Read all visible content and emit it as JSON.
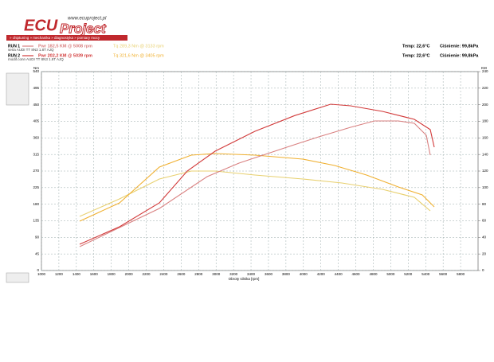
{
  "header": {
    "logo": "ECU",
    "logo2": "Project",
    "url": "www.ecuproject.pl",
    "nav": "» chiptuning » mechanika » diagnostyka » pomiary mocy"
  },
  "chart_data": {
    "type": "line",
    "runs": [
      {
        "label": "RUN 1",
        "power": "Pwr 182,5 KM @ 5008 rpm",
        "torque": "Tq 289,3 Nm @ 3133 rpm",
        "desc": "seria AUDI TT 8N3 1.8T AJQ",
        "temp": "Temp: 22,6°C",
        "pressure": "Ciśnienie: 99,8kPa"
      },
      {
        "label": "RUN 2",
        "power": "Pwr 202,2 KM @ 5039 rpm",
        "torque": "Tq 321,6 Nm @ 3405 rpm",
        "desc": "modif.conn AUDI TT 8N3 1.8T AJQ",
        "temp": "Temp: 22,6°C",
        "pressure": "Ciśnienie: 99,8kPa"
      }
    ],
    "y_label": "Nm",
    "y2_label": "KM",
    "x_label": "Obroty silnika [rpm]",
    "xlim": [
      1000,
      6000
    ],
    "xticks": [
      1000,
      1200,
      1400,
      1600,
      1800,
      2000,
      2200,
      2400,
      2600,
      2800,
      3000,
      3200,
      3400,
      3600,
      3800,
      4000,
      4200,
      4400,
      4600,
      4800,
      5000,
      5200,
      5400,
      5600,
      5800
    ],
    "ylim": [
      0,
      540
    ],
    "yticks": [
      0,
      45,
      90,
      135,
      180,
      225,
      270,
      315,
      360,
      405,
      450,
      495,
      540
    ],
    "y2lim": [
      0,
      240
    ],
    "y2ticks": [
      0,
      20,
      40,
      60,
      80,
      100,
      120,
      140,
      160,
      180,
      200,
      220,
      240
    ],
    "grid": true,
    "series": [
      {
        "color": "#e8d070",
        "x": [
          1438,
          1894,
          2350,
          2715,
          2989,
          3445,
          3993,
          4441,
          4905,
          5270,
          5453
        ],
        "values": [
          146.9,
          194.4,
          248.4,
          270,
          270,
          259.2,
          248.4,
          237.6,
          220.3,
          198.7,
          162
        ]
      },
      {
        "color": "#f0b030",
        "x": [
          1438,
          1894,
          2350,
          2715,
          2989,
          3445,
          3993,
          4358,
          4723,
          5088,
          5361,
          5498
        ],
        "values": [
          133.9,
          183.6,
          280.8,
          313.2,
          317.5,
          313.2,
          302.4,
          285.1,
          259.2,
          226.8,
          205.2,
          172.8
        ]
      },
      {
        "color": "#d98080",
        "axis": "y2",
        "x": [
          1438,
          2350,
          2898,
          3263,
          3810,
          4175,
          4540,
          4814,
          5088,
          5270,
          5407,
          5453
        ],
        "values": [
          28.8,
          74.9,
          113.3,
          129.6,
          148.8,
          161.3,
          172.8,
          180.5,
          180.5,
          177.6,
          163.2,
          139.2
        ]
      },
      {
        "color": "#d23a3a",
        "axis": "y2",
        "x": [
          1438,
          1894,
          2350,
          2670,
          2989,
          3445,
          3902,
          4312,
          4540,
          4905,
          5270,
          5453,
          5498
        ],
        "values": [
          31.7,
          52.8,
          81.6,
          120,
          144,
          168,
          187,
          200.6,
          198.7,
          192,
          182.4,
          170,
          148.8
        ]
      }
    ]
  }
}
